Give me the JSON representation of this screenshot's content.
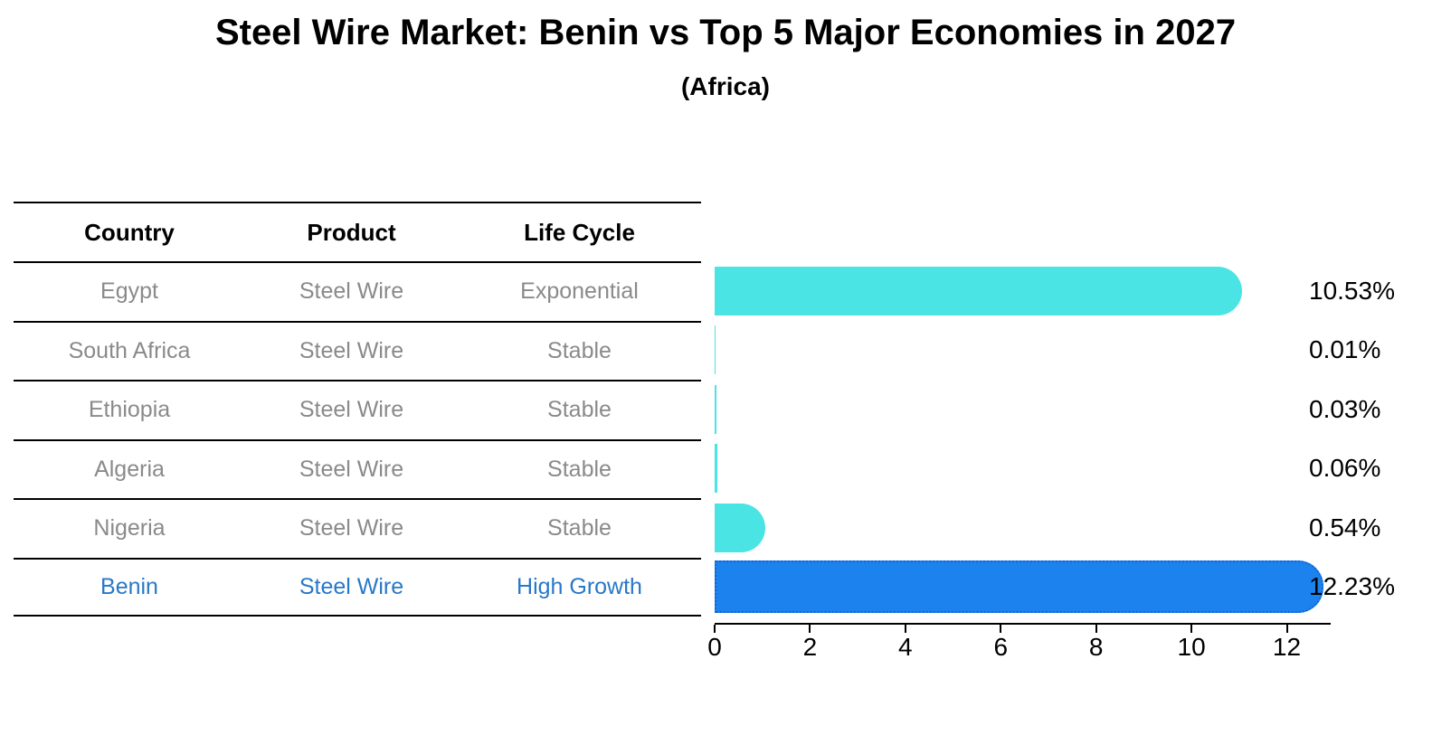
{
  "title": "Steel Wire Market: Benin vs Top 5 Major Economies in 2027",
  "subtitle": "(Africa)",
  "table": {
    "headers": [
      "Country",
      "Product",
      "Life Cycle"
    ],
    "rows": [
      {
        "country": "Egypt",
        "product": "Steel Wire",
        "life_cycle": "Exponential",
        "highlight": false
      },
      {
        "country": "South Africa",
        "product": "Steel Wire",
        "life_cycle": "Stable",
        "highlight": false
      },
      {
        "country": "Ethiopia",
        "product": "Steel Wire",
        "life_cycle": "Stable",
        "highlight": false
      },
      {
        "country": "Algeria",
        "product": "Steel Wire",
        "life_cycle": "Stable",
        "highlight": false
      },
      {
        "country": "Nigeria",
        "product": "Steel Wire",
        "life_cycle": "Stable",
        "highlight": false
      },
      {
        "country": "Benin",
        "product": "Steel Wire",
        "life_cycle": "High Growth",
        "highlight": true
      }
    ]
  },
  "chart_data": {
    "type": "bar",
    "orientation": "horizontal",
    "title": "Steel Wire Market: Benin vs Top 5 Major Economies in 2027",
    "subtitle": "(Africa)",
    "categories": [
      "Egypt",
      "South Africa",
      "Ethiopia",
      "Algeria",
      "Nigeria",
      "Benin"
    ],
    "values": [
      10.53,
      0.01,
      0.03,
      0.06,
      0.54,
      12.23
    ],
    "value_labels": [
      "10.53%",
      "0.01%",
      "0.03%",
      "0.06%",
      "0.54%",
      "12.23%"
    ],
    "highlight_index": 5,
    "x_ticks": [
      0,
      2,
      4,
      6,
      8,
      10,
      12
    ],
    "xlim": [
      0,
      12.92
    ],
    "grid": false,
    "legend": "none"
  },
  "colors": {
    "bar": "#4be4e4",
    "highlight_bar": "#1b82ee",
    "highlight_border": "#1265d2",
    "highlight_text": "#2878c8",
    "table_text": "#8a8a8a",
    "axis": "#000000"
  }
}
